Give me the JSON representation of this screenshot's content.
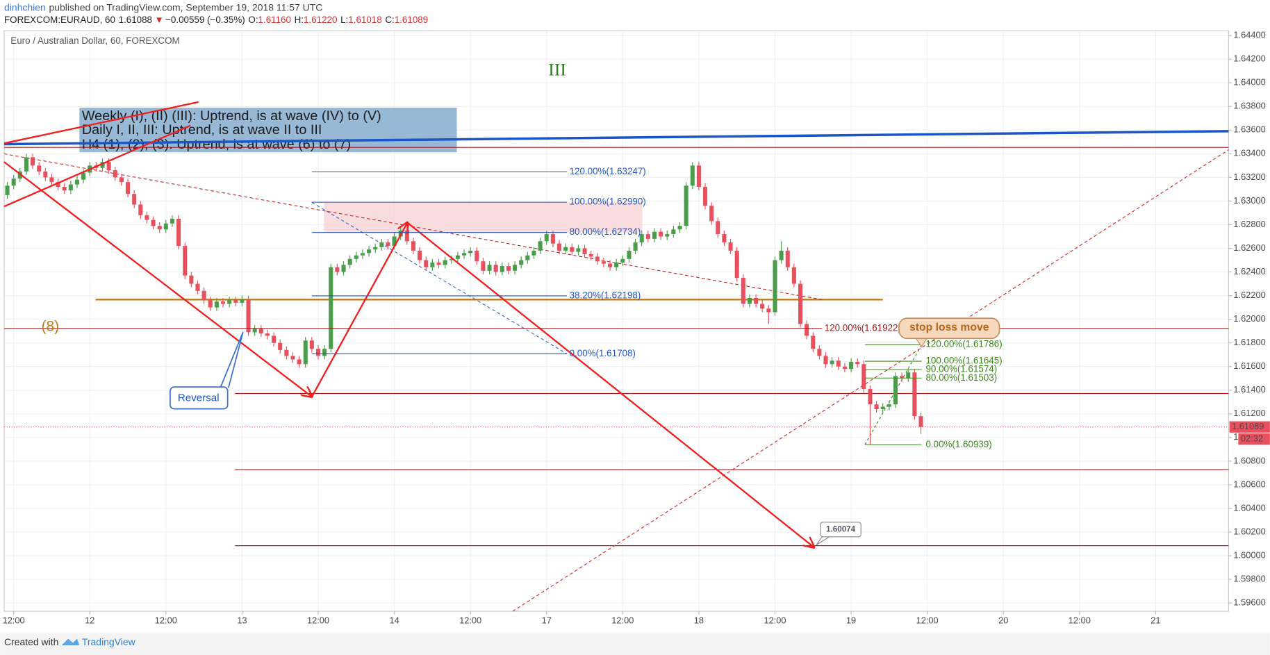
{
  "header": {
    "author": "dinhchien",
    "published": "published on TradingView.com, September 19, 2018 11:57 UTC",
    "symbol": "FOREXCOM:EURAUD, 60",
    "price": "1.61088",
    "arrow": "▼",
    "change": "−0.00559 (−0.35%)",
    "ohlc": [
      {
        "k": "O:",
        "v": "1.61160"
      },
      {
        "k": "H:",
        "v": "1.61220"
      },
      {
        "k": "L:",
        "v": "1.61018"
      },
      {
        "k": "C:",
        "v": "1.61089"
      }
    ]
  },
  "footer": {
    "created": "Created with",
    "brand": "TradingView"
  },
  "annotations": {
    "wave": "III",
    "count": "(8)",
    "note": [
      "Weekly (I), (II) (III): Uptrend, is at wave (IV) to (V)",
      "Daily I, II, III: Uptrend, is at wave II to III",
      "H4 (1), (2), (3): Uptrend, is at wave (6) to (7)"
    ],
    "reversal": "Reversal",
    "stop_loss": "stop loss move",
    "target": "1.60074"
  },
  "chart_data": {
    "type": "candlestick",
    "title": "Euro / Australian Dollar, 60, FOREXCOM",
    "up_color": "#4a9e4a",
    "down_color": "#e8505e",
    "grid": true,
    "xlim": [
      -0.5,
      192.5
    ],
    "xticks": [
      {
        "value": 1,
        "label": "12:00"
      },
      {
        "value": 13,
        "label": "12"
      },
      {
        "value": 25,
        "label": "12:00"
      },
      {
        "value": 37,
        "label": "13"
      },
      {
        "value": 49,
        "label": "12:00"
      },
      {
        "value": 61,
        "label": "14"
      },
      {
        "value": 73,
        "label": "12:00"
      },
      {
        "value": 85,
        "label": "17"
      },
      {
        "value": 97,
        "label": "12:00"
      },
      {
        "value": 109,
        "label": "18"
      },
      {
        "value": 121,
        "label": "12:00"
      },
      {
        "value": 133,
        "label": "19"
      },
      {
        "value": 145,
        "label": "12:00"
      },
      {
        "value": 157,
        "label": "20"
      },
      {
        "value": 169,
        "label": "12:00"
      },
      {
        "value": 181,
        "label": "21"
      }
    ],
    "ylim": [
      1.5953,
      1.6444
    ],
    "yticks": [
      {
        "value": 1.644,
        "label": "1.64400"
      },
      {
        "value": 1.642,
        "label": "1.64200"
      },
      {
        "value": 1.64,
        "label": "1.64000"
      },
      {
        "value": 1.638,
        "label": "1.63800"
      },
      {
        "value": 1.636,
        "label": "1.63600"
      },
      {
        "value": 1.634,
        "label": "1.63400"
      },
      {
        "value": 1.632,
        "label": "1.63200"
      },
      {
        "value": 1.63,
        "label": "1.63000"
      },
      {
        "value": 1.628,
        "label": "1.62800"
      },
      {
        "value": 1.626,
        "label": "1.62600"
      },
      {
        "value": 1.624,
        "label": "1.62400"
      },
      {
        "value": 1.622,
        "label": "1.62200"
      },
      {
        "value": 1.62,
        "label": "1.62000"
      },
      {
        "value": 1.618,
        "label": "1.61800"
      },
      {
        "value": 1.616,
        "label": "1.61600"
      },
      {
        "value": 1.614,
        "label": "1.61400"
      },
      {
        "value": 1.612,
        "label": "1.61200"
      },
      {
        "value": 1.61,
        "label": "1.61000"
      },
      {
        "value": 1.608,
        "label": "1.60800"
      },
      {
        "value": 1.606,
        "label": "1.60600"
      },
      {
        "value": 1.604,
        "label": "1.60400"
      },
      {
        "value": 1.602,
        "label": "1.60200"
      },
      {
        "value": 1.6,
        "label": "1.60000"
      },
      {
        "value": 1.598,
        "label": "1.59800"
      },
      {
        "value": 1.596,
        "label": "1.59600"
      }
    ],
    "last_price": {
      "value": 1.61089,
      "label": "1.61089",
      "countdown": "02:32"
    },
    "fibs": [
      {
        "color": "#2155c4",
        "levels": [
          {
            "label": "120.00%(1.63247)",
            "value": 1.63247
          },
          {
            "label": "100.00%(1.62990)",
            "value": 1.6299
          },
          {
            "label": "80.00%(1.62734)",
            "value": 1.62734
          },
          {
            "label": "38.20%(1.62198)",
            "value": 1.62198
          },
          {
            "label": "0.00%(1.61708)",
            "value": 1.61708
          }
        ]
      },
      {
        "color": "#a01818",
        "levels": [
          {
            "label": "120.00%(1.61922)",
            "value": 1.61922
          }
        ]
      },
      {
        "color": "#3a8a1a",
        "levels": [
          {
            "label": "120.00%(1.61786)",
            "value": 1.61786
          },
          {
            "label": "100.00%(1.61645)",
            "value": 1.61645
          },
          {
            "label": "90.00%(1.61574)",
            "value": 1.61574
          },
          {
            "label": "80.00%(1.61503)",
            "value": 1.61503
          },
          {
            "label": "0.00%(1.60939)",
            "value": 1.60939
          }
        ]
      }
    ],
    "ohlc": [
      [
        1.6305,
        1.6316,
        1.6302,
        1.6313
      ],
      [
        1.6313,
        1.6322,
        1.631,
        1.6319
      ],
      [
        1.6319,
        1.6328,
        1.6316,
        1.6325
      ],
      [
        1.6325,
        1.634,
        1.6322,
        1.6337
      ],
      [
        1.6337,
        1.634,
        1.6327,
        1.633
      ],
      [
        1.633,
        1.6333,
        1.6322,
        1.6325
      ],
      [
        1.6325,
        1.6328,
        1.6317,
        1.632
      ],
      [
        1.632,
        1.6323,
        1.6313,
        1.6316
      ],
      [
        1.6316,
        1.6319,
        1.6309,
        1.6312
      ],
      [
        1.6312,
        1.6315,
        1.6306,
        1.6309
      ],
      [
        1.6309,
        1.6317,
        1.6306,
        1.6314
      ],
      [
        1.6314,
        1.6321,
        1.6311,
        1.6318
      ],
      [
        1.6318,
        1.6327,
        1.6315,
        1.6324
      ],
      [
        1.6324,
        1.6333,
        1.6321,
        1.633
      ],
      [
        1.633,
        1.6333,
        1.6325,
        1.6328
      ],
      [
        1.6328,
        1.6336,
        1.6325,
        1.6333
      ],
      [
        1.6333,
        1.6336,
        1.6323,
        1.6326
      ],
      [
        1.6326,
        1.6329,
        1.6317,
        1.632
      ],
      [
        1.632,
        1.6323,
        1.6313,
        1.6316
      ],
      [
        1.6316,
        1.6319,
        1.6303,
        1.6306
      ],
      [
        1.6306,
        1.6309,
        1.6294,
        1.6297
      ],
      [
        1.6297,
        1.63,
        1.6285,
        1.6288
      ],
      [
        1.6288,
        1.6291,
        1.6281,
        1.6284
      ],
      [
        1.6284,
        1.6287,
        1.6276,
        1.6279
      ],
      [
        1.6279,
        1.6282,
        1.6273,
        1.6276
      ],
      [
        1.6276,
        1.6284,
        1.6273,
        1.6281
      ],
      [
        1.6281,
        1.6288,
        1.6278,
        1.6285
      ],
      [
        1.6285,
        1.6288,
        1.6259,
        1.6262
      ],
      [
        1.6262,
        1.6265,
        1.6234,
        1.6237
      ],
      [
        1.6237,
        1.624,
        1.6227,
        1.623
      ],
      [
        1.623,
        1.6233,
        1.6221,
        1.6224
      ],
      [
        1.6224,
        1.6227,
        1.6213,
        1.6216
      ],
      [
        1.6216,
        1.6219,
        1.6207,
        1.621
      ],
      [
        1.621,
        1.6218,
        1.6207,
        1.6215
      ],
      [
        1.6215,
        1.6218,
        1.621,
        1.6213
      ],
      [
        1.6213,
        1.6219,
        1.621,
        1.6216
      ],
      [
        1.6216,
        1.6219,
        1.6211,
        1.6214
      ],
      [
        1.6214,
        1.622,
        1.6211,
        1.6217
      ],
      [
        1.6217,
        1.622,
        1.6186,
        1.6189
      ],
      [
        1.6189,
        1.6195,
        1.6186,
        1.6192
      ],
      [
        1.6192,
        1.6195,
        1.6185,
        1.6188
      ],
      [
        1.6188,
        1.6191,
        1.6183,
        1.6186
      ],
      [
        1.6186,
        1.6189,
        1.6177,
        1.618
      ],
      [
        1.618,
        1.6183,
        1.6171,
        1.6174
      ],
      [
        1.6174,
        1.6177,
        1.6166,
        1.6169
      ],
      [
        1.6169,
        1.6172,
        1.6163,
        1.6166
      ],
      [
        1.6166,
        1.6169,
        1.6159,
        1.6162
      ],
      [
        1.6162,
        1.6185,
        1.6159,
        1.6182
      ],
      [
        1.6182,
        1.6185,
        1.6172,
        1.6175
      ],
      [
        1.6175,
        1.6178,
        1.6166,
        1.6169
      ],
      [
        1.6169,
        1.6178,
        1.6166,
        1.6175
      ],
      [
        1.6175,
        1.6247,
        1.6172,
        1.6244
      ],
      [
        1.6244,
        1.6247,
        1.6237,
        1.624
      ],
      [
        1.624,
        1.6249,
        1.6237,
        1.6246
      ],
      [
        1.6246,
        1.6254,
        1.6243,
        1.6251
      ],
      [
        1.6251,
        1.6257,
        1.6248,
        1.6254
      ],
      [
        1.6254,
        1.6259,
        1.6251,
        1.6256
      ],
      [
        1.6256,
        1.6262,
        1.6253,
        1.6259
      ],
      [
        1.6259,
        1.6264,
        1.6256,
        1.6261
      ],
      [
        1.6261,
        1.6268,
        1.6258,
        1.6265
      ],
      [
        1.6265,
        1.6268,
        1.6259,
        1.6262
      ],
      [
        1.6262,
        1.6273,
        1.6259,
        1.627
      ],
      [
        1.627,
        1.6278,
        1.6267,
        1.6275
      ],
      [
        1.6275,
        1.6278,
        1.6263,
        1.6266
      ],
      [
        1.6266,
        1.6269,
        1.6255,
        1.6258
      ],
      [
        1.6258,
        1.6261,
        1.6247,
        1.625
      ],
      [
        1.625,
        1.6253,
        1.6241,
        1.6244
      ],
      [
        1.6244,
        1.6251,
        1.6241,
        1.6248
      ],
      [
        1.6248,
        1.6251,
        1.6243,
        1.6246
      ],
      [
        1.6246,
        1.6253,
        1.6243,
        1.625
      ],
      [
        1.625,
        1.6254,
        1.6247,
        1.6251
      ],
      [
        1.6251,
        1.6257,
        1.6248,
        1.6254
      ],
      [
        1.6254,
        1.6259,
        1.6251,
        1.6256
      ],
      [
        1.6256,
        1.6261,
        1.6253,
        1.6258
      ],
      [
        1.6258,
        1.6261,
        1.6246,
        1.6249
      ],
      [
        1.6249,
        1.6252,
        1.6238,
        1.6241
      ],
      [
        1.6241,
        1.6249,
        1.6238,
        1.6246
      ],
      [
        1.6246,
        1.6249,
        1.6237,
        1.624
      ],
      [
        1.624,
        1.6248,
        1.6237,
        1.6245
      ],
      [
        1.6245,
        1.6248,
        1.6238,
        1.6241
      ],
      [
        1.6241,
        1.6249,
        1.6238,
        1.6246
      ],
      [
        1.6246,
        1.6253,
        1.6243,
        1.625
      ],
      [
        1.625,
        1.6257,
        1.6247,
        1.6254
      ],
      [
        1.6254,
        1.6261,
        1.6251,
        1.6258
      ],
      [
        1.6258,
        1.6269,
        1.6255,
        1.6266
      ],
      [
        1.6266,
        1.6275,
        1.6263,
        1.6272
      ],
      [
        1.6272,
        1.6275,
        1.6261,
        1.6264
      ],
      [
        1.6264,
        1.6267,
        1.6255,
        1.6258
      ],
      [
        1.6258,
        1.6264,
        1.6255,
        1.6261
      ],
      [
        1.6261,
        1.6264,
        1.6254,
        1.6257
      ],
      [
        1.6257,
        1.6263,
        1.6254,
        1.626
      ],
      [
        1.626,
        1.6263,
        1.6252,
        1.6255
      ],
      [
        1.6255,
        1.6258,
        1.625,
        1.6253
      ],
      [
        1.6253,
        1.6256,
        1.6246,
        1.6249
      ],
      [
        1.6249,
        1.6252,
        1.6244,
        1.6247
      ],
      [
        1.6247,
        1.625,
        1.6241,
        1.6244
      ],
      [
        1.6244,
        1.6251,
        1.6241,
        1.6248
      ],
      [
        1.6248,
        1.6254,
        1.6245,
        1.6251
      ],
      [
        1.6251,
        1.6261,
        1.6248,
        1.6258
      ],
      [
        1.6258,
        1.6268,
        1.6255,
        1.6265
      ],
      [
        1.6265,
        1.6275,
        1.6262,
        1.6272
      ],
      [
        1.6272,
        1.6275,
        1.6265,
        1.6268
      ],
      [
        1.6268,
        1.6277,
        1.6265,
        1.6274
      ],
      [
        1.6274,
        1.6277,
        1.6267,
        1.627
      ],
      [
        1.627,
        1.6275,
        1.6267,
        1.6272
      ],
      [
        1.6272,
        1.6279,
        1.6269,
        1.6276
      ],
      [
        1.6276,
        1.6282,
        1.6273,
        1.6279
      ],
      [
        1.6279,
        1.6316,
        1.6276,
        1.6313
      ],
      [
        1.6313,
        1.6333,
        1.631,
        1.633
      ],
      [
        1.633,
        1.6333,
        1.6309,
        1.6312
      ],
      [
        1.6312,
        1.6315,
        1.6293,
        1.6296
      ],
      [
        1.6296,
        1.6299,
        1.628,
        1.6283
      ],
      [
        1.6283,
        1.6286,
        1.6269,
        1.6272
      ],
      [
        1.6272,
        1.6275,
        1.6262,
        1.6265
      ],
      [
        1.6265,
        1.6268,
        1.6255,
        1.6258
      ],
      [
        1.6258,
        1.6261,
        1.6232,
        1.6235
      ],
      [
        1.6235,
        1.6238,
        1.621,
        1.6213
      ],
      [
        1.6213,
        1.6221,
        1.621,
        1.6218
      ],
      [
        1.6218,
        1.6221,
        1.621,
        1.6213
      ],
      [
        1.6213,
        1.6216,
        1.6206,
        1.6209
      ],
      [
        1.6209,
        1.6212,
        1.6196,
        1.6206
      ],
      [
        1.6206,
        1.6253,
        1.6203,
        1.625
      ],
      [
        1.625,
        1.6266,
        1.6247,
        1.6258
      ],
      [
        1.6258,
        1.6261,
        1.6241,
        1.6244
      ],
      [
        1.6244,
        1.6247,
        1.6227,
        1.623
      ],
      [
        1.623,
        1.6233,
        1.6193,
        1.6196
      ],
      [
        1.6196,
        1.6199,
        1.6183,
        1.6186
      ],
      [
        1.6186,
        1.6189,
        1.6172,
        1.6175
      ],
      [
        1.6175,
        1.6178,
        1.6166,
        1.6169
      ],
      [
        1.6169,
        1.6172,
        1.6159,
        1.6162
      ],
      [
        1.6162,
        1.6168,
        1.6159,
        1.6165
      ],
      [
        1.6165,
        1.6168,
        1.6157,
        1.616
      ],
      [
        1.616,
        1.6163,
        1.6155,
        1.6158
      ],
      [
        1.6158,
        1.6167,
        1.6155,
        1.6164
      ],
      [
        1.6164,
        1.6167,
        1.6159,
        1.6162
      ],
      [
        1.6162,
        1.6165,
        1.6138,
        1.6141
      ],
      [
        1.6141,
        1.6144,
        1.6094,
        1.6128
      ],
      [
        1.6128,
        1.6131,
        1.6121,
        1.6124
      ],
      [
        1.6124,
        1.6129,
        1.6121,
        1.6126
      ],
      [
        1.6126,
        1.6131,
        1.6123,
        1.6128
      ],
      [
        1.6128,
        1.6155,
        1.6125,
        1.6152
      ],
      [
        1.6152,
        1.6155,
        1.6147,
        1.615
      ],
      [
        1.615,
        1.6158,
        1.6147,
        1.6155
      ],
      [
        1.6155,
        1.6158,
        1.6115,
        1.6118
      ],
      [
        1.6118,
        1.6121,
        1.6103,
        1.61089
      ]
    ]
  }
}
